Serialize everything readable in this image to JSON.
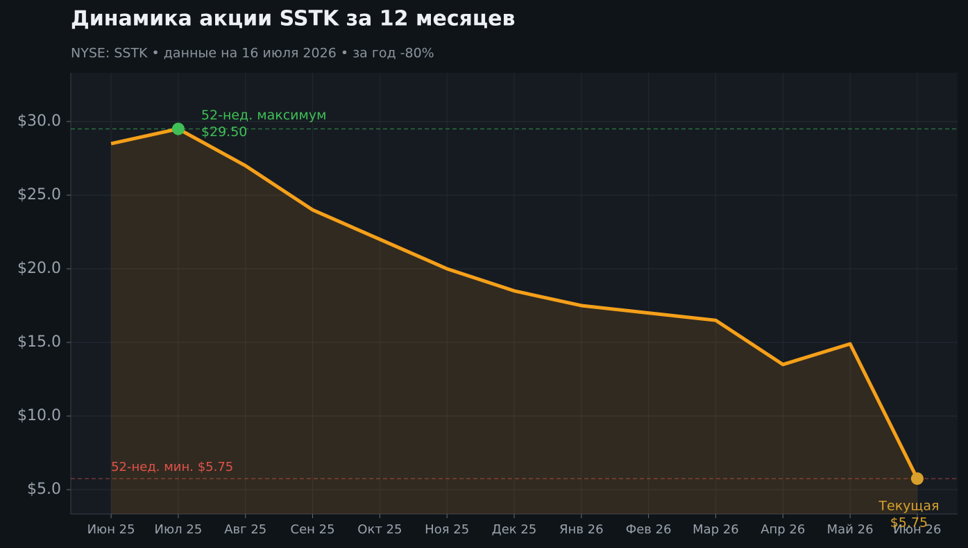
{
  "chart_data": {
    "type": "line",
    "title": "Динамика акции SSTK за 12 месяцев",
    "subtitle": "NYSE: SSTK  •  данные на 16 июля 2026  •  за год -80%",
    "categories": [
      "Июн 25",
      "Июл 25",
      "Авг 25",
      "Сен 25",
      "Окт 25",
      "Ноя 25",
      "Дек 25",
      "Янв 26",
      "Фев 26",
      "Мар 26",
      "Апр 26",
      "Май 26",
      "Июн 26"
    ],
    "values": [
      28.5,
      29.5,
      27.0,
      24.0,
      22.0,
      20.0,
      18.5,
      17.5,
      17.0,
      16.5,
      13.5,
      14.9,
      5.75
    ],
    "color": "#f5a01a",
    "ylim": [
      3.35,
      33.3
    ],
    "yticks": [
      {
        "value": 5,
        "label": "$5.0"
      },
      {
        "value": 10,
        "label": "$10.0"
      },
      {
        "value": 15,
        "label": "$15.0"
      },
      {
        "value": 20,
        "label": "$20.0"
      },
      {
        "value": 25,
        "label": "$25.0"
      },
      {
        "value": 30,
        "label": "$30.0"
      }
    ],
    "grid": true,
    "annotations": {
      "high": {
        "label": "52-нед. максимум",
        "value_label": "$29.50",
        "value": 29.5,
        "color": "#3fbf55"
      },
      "low": {
        "label": "52-нед. мин. $5.75",
        "value": 5.75,
        "color": "#e0534a"
      },
      "current": {
        "label": "Текущая",
        "value_label": "$5.75",
        "value": 5.75,
        "color": "#d9a12b"
      }
    }
  }
}
